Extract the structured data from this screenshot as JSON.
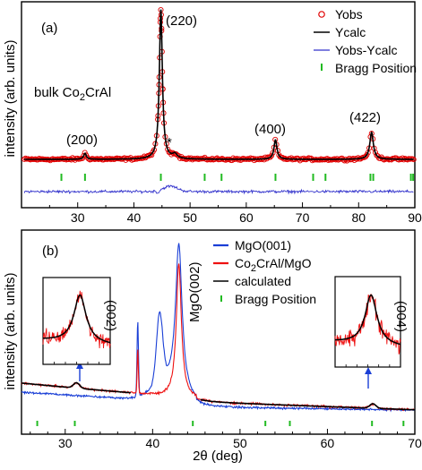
{
  "chart_data": [
    {
      "type": "line",
      "panel_label": "(a)",
      "sample_label": {
        "text": "bulk Co",
        "sub": "2",
        "rest": "CrAl"
      },
      "ylabel": "intensity (arb. units)",
      "xlim": [
        20,
        90
      ],
      "xticks": [
        30,
        40,
        50,
        60,
        70,
        80,
        90
      ],
      "legend": {
        "position": "top-right",
        "entries": [
          {
            "label": "Yobs",
            "marker": "open-circle",
            "color": "#e00000"
          },
          {
            "label": "Ycalc",
            "marker": "line",
            "color": "#000000"
          },
          {
            "label": "Yobs-Ycalc",
            "marker": "line",
            "color": "#3333cc"
          },
          {
            "label": "Bragg Position",
            "marker": "tick",
            "color": "#22bb22"
          }
        ]
      },
      "peaks": [
        {
          "label": "(200)",
          "x": 31.3,
          "height": 0.04
        },
        {
          "label": "(220)",
          "x": 44.8,
          "height": 1.0
        },
        {
          "label": "*",
          "x": 47.3,
          "height": 0.03
        },
        {
          "label": "(400)",
          "x": 65.2,
          "height": 0.13
        },
        {
          "label": "(422)",
          "x": 82.3,
          "height": 0.18
        }
      ],
      "bragg_positions": [
        27.1,
        31.3,
        44.8,
        52.6,
        55.6,
        65.2,
        71.9,
        74.1,
        82.1,
        82.6,
        89.3,
        89.7
      ]
    },
    {
      "type": "line",
      "panel_label": "(b)",
      "ylabel": "intensity (arb. units)",
      "xlabel": "2θ (deg)",
      "xlim": [
        25,
        70
      ],
      "xticks": [
        30,
        40,
        50,
        60,
        70
      ],
      "legend": {
        "position": "top-right",
        "entries": [
          {
            "label": "MgO(001)",
            "marker": "line",
            "color": "#1a3fd6"
          },
          {
            "label": "Co2CrAl/MgO",
            "label_main": "Co",
            "label_sub": "2",
            "label_rest": "CrAl/MgO",
            "marker": "line",
            "color": "#ee1111"
          },
          {
            "label": "calculated",
            "marker": "line",
            "color": "#000000"
          },
          {
            "label": "Bragg Position",
            "marker": "tick",
            "color": "#22bb22"
          }
        ]
      },
      "annotations": [
        {
          "label": "MgO(002)",
          "x": 43.0
        },
        {
          "label": "(002)",
          "x": 31.3
        },
        {
          "label": "(004)",
          "x": 65.2
        }
      ],
      "peaks": [
        {
          "x": 31.3,
          "height": 0.03
        },
        {
          "x": 38.3,
          "height": 0.28
        },
        {
          "x": 40.7,
          "height": 0.25
        },
        {
          "x": 43.0,
          "height": 1.0
        },
        {
          "x": 65.2,
          "height": 0.03
        }
      ],
      "bragg_positions": [
        26.8,
        31.1,
        44.6,
        52.9,
        55.7,
        65.1,
        68.7
      ]
    }
  ]
}
